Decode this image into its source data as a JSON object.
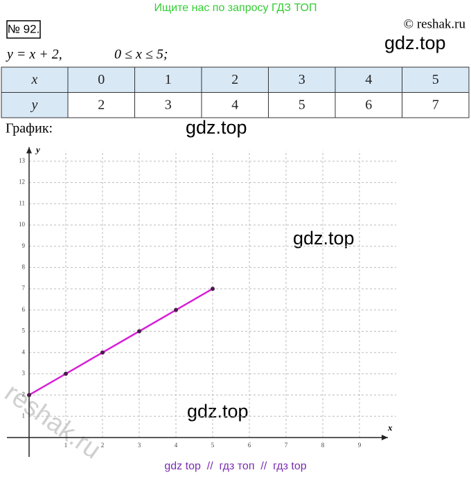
{
  "header": {
    "banner": "Ищите нас по запросу ГДЗ ТОП",
    "number": "№ 92.",
    "copyright": "© reshak.ru"
  },
  "equation": {
    "formula": "y = x + 2,",
    "domain": "0 ≤ x ≤ 5;"
  },
  "table": {
    "rows": [
      [
        "x",
        0,
        1,
        2,
        3,
        4,
        5
      ],
      [
        "y",
        2,
        3,
        4,
        5,
        6,
        7
      ]
    ]
  },
  "graph_caption": "График:",
  "watermarks": [
    "gdz.top",
    "gdz.top",
    "gdz.top",
    "gdz.top",
    "reshak.ru"
  ],
  "footer": "gdz top  //  гдз топ  //  гдз top",
  "chart_data": {
    "type": "line",
    "x_label": "x",
    "y_label": "y",
    "x": [
      0,
      1,
      2,
      3,
      4,
      5
    ],
    "values": [
      2,
      3,
      4,
      5,
      6,
      7
    ],
    "color": "#d61ed6",
    "xlim": [
      0,
      10
    ],
    "ylim": [
      0,
      13.5
    ],
    "xticks": [
      1,
      2,
      3,
      4,
      5,
      6,
      7,
      8,
      9
    ],
    "yticks": [
      1,
      2,
      3,
      4,
      5,
      6,
      7,
      8,
      9,
      10,
      11,
      12,
      13
    ],
    "grid": true
  }
}
